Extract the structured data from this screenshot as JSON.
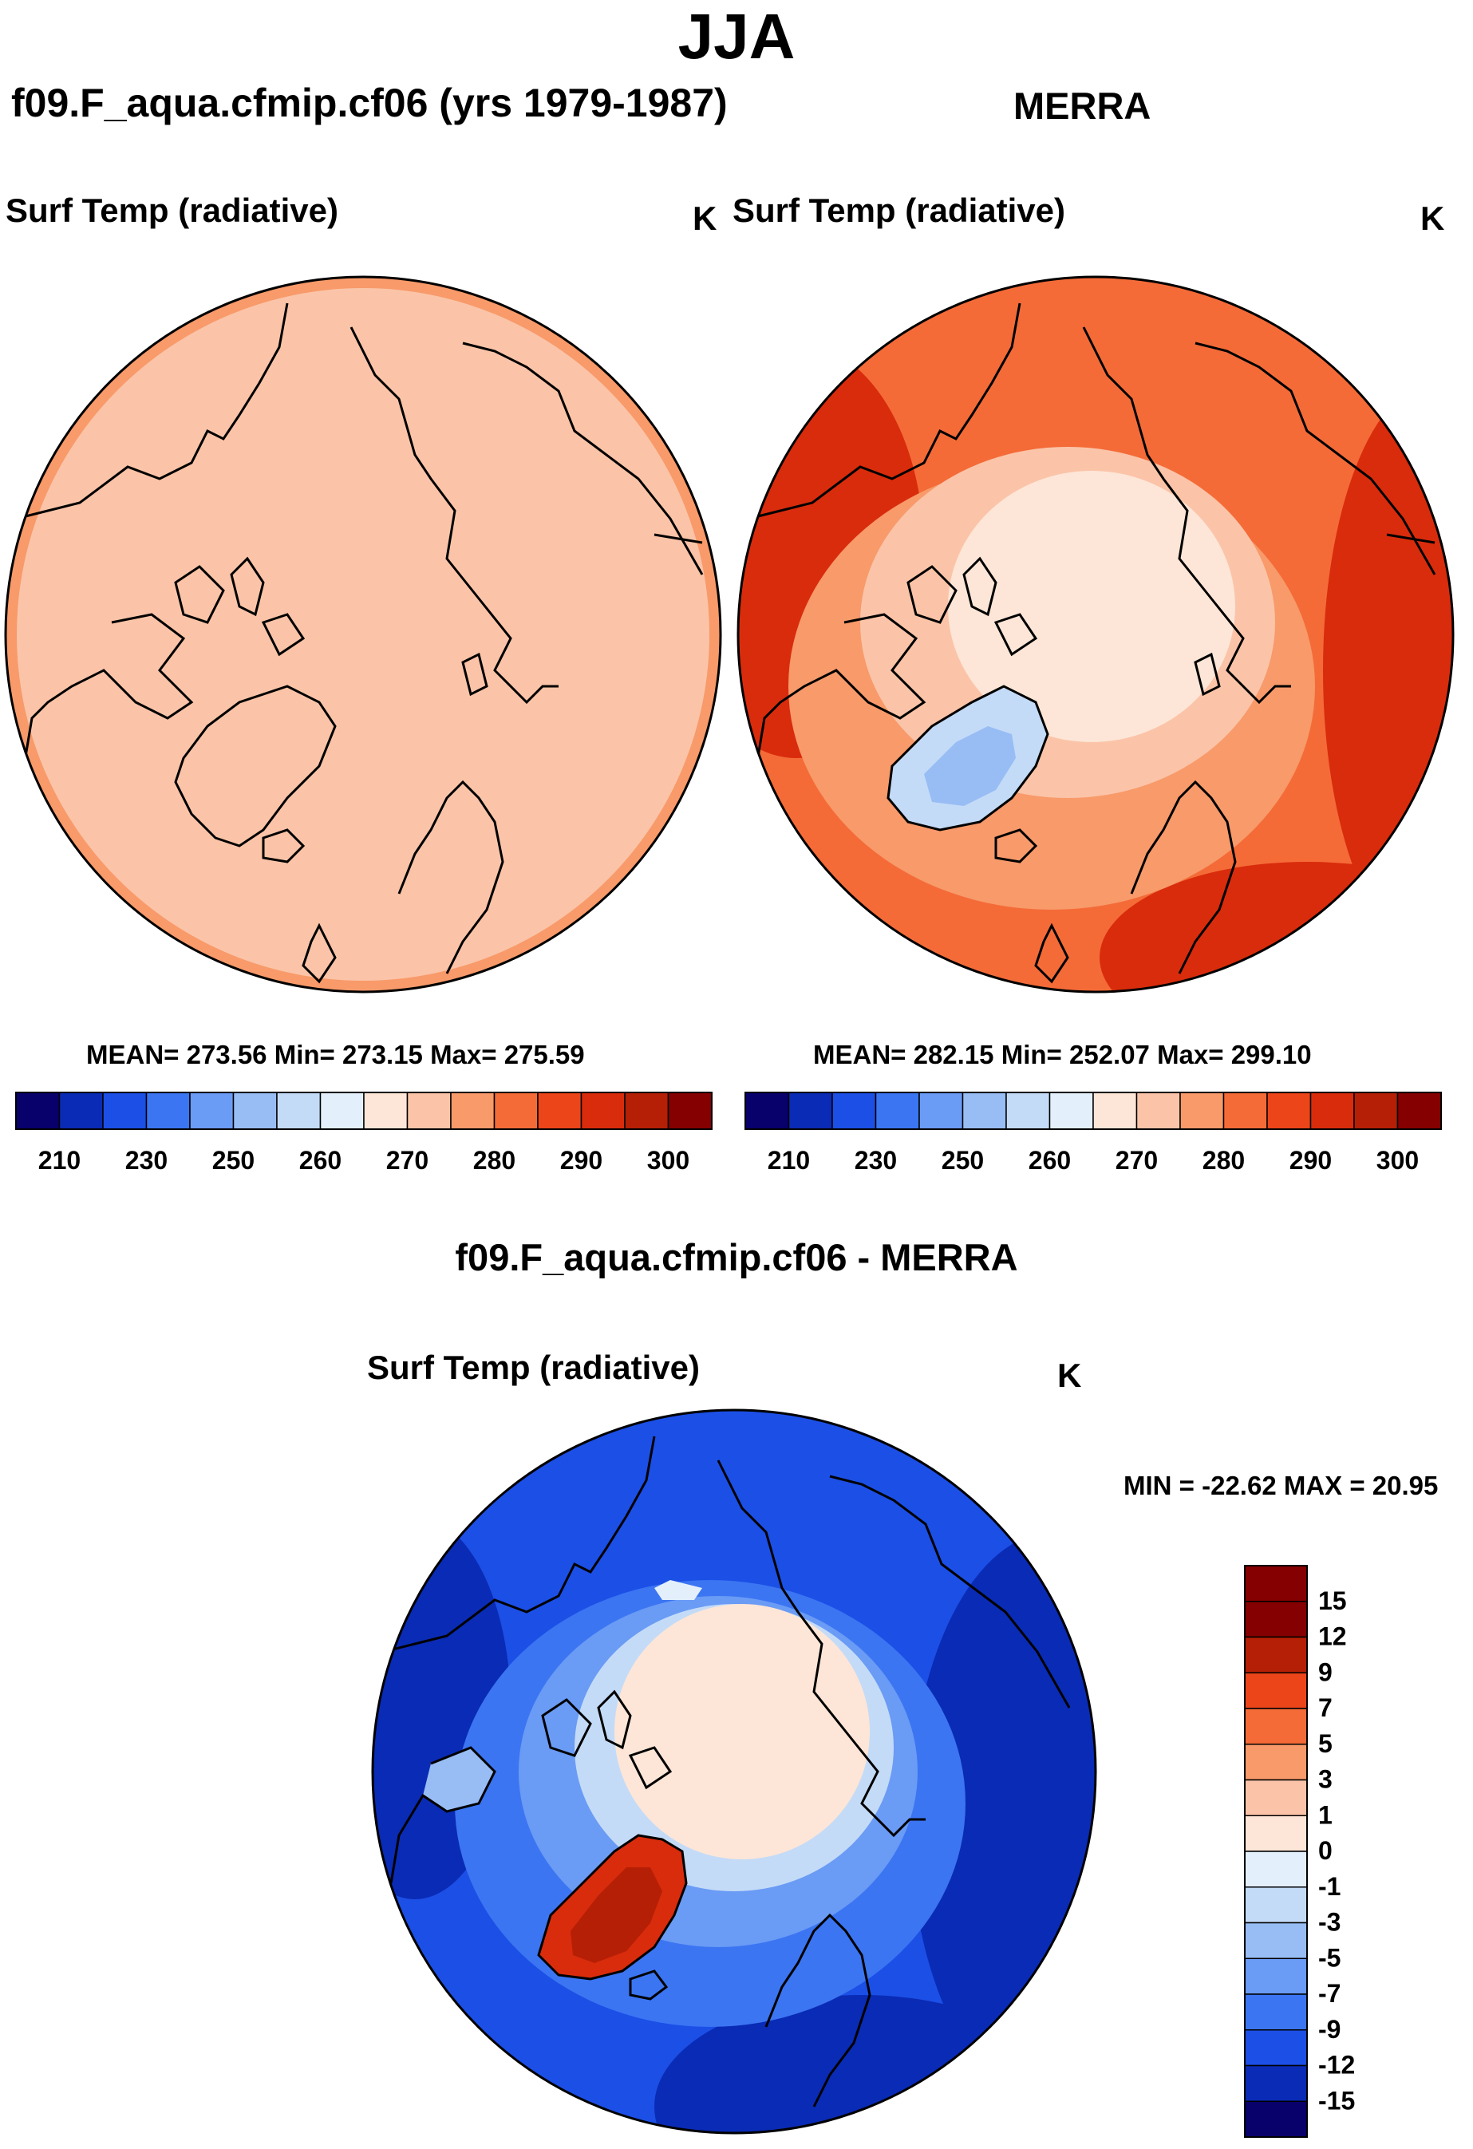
{
  "title": "JJA",
  "panels": {
    "left": {
      "case": "f09.F_aqua.cfmip.cf06 (yrs 1979-1987)",
      "var": "Surf Temp (radiative)",
      "unit": "K",
      "stats": "MEAN= 273.56  Min= 273.15  Max= 275.59"
    },
    "right": {
      "case": "MERRA",
      "var": "Surf Temp (radiative)",
      "unit": "K",
      "stats": "MEAN= 282.15  Min= 252.07  Max= 299.10"
    },
    "diff": {
      "case": "f09.F_aqua.cfmip.cf06 - MERRA",
      "var": "Surf Temp (radiative)",
      "unit": "K",
      "range": "MIN = -22.62 MAX =  20.95"
    }
  },
  "colors": {
    "abs_scale": [
      "#08006b",
      "#0a2bb5",
      "#1c4fe6",
      "#3b75f2",
      "#6a9bf5",
      "#98bdf5",
      "#c4dbf7",
      "#e3f0fb",
      "#fde6d7",
      "#fbc4a8",
      "#f89a6a",
      "#f46b38",
      "#ec4519",
      "#d92c0c",
      "#b51f05",
      "#850000"
    ],
    "diff_scale": [
      "#08006b",
      "#0a2bb5",
      "#1c4fe6",
      "#3b75f2",
      "#6a9bf5",
      "#98bdf5",
      "#c4dbf7",
      "#e3f0fb",
      "#fde6d7",
      "#fbc4a8",
      "#f89a6a",
      "#f46b38",
      "#ec4519",
      "#b51f05",
      "#850000"
    ]
  },
  "chart_data": [
    {
      "type": "heatmap",
      "title": "Surf Temp (radiative)",
      "case": "f09.F_aqua.cfmip.cf06 (yrs 1979-1987)",
      "units": "K",
      "projection": "north polar stereographic",
      "mean": 273.56,
      "min": 273.15,
      "max": 275.59,
      "colorbar_ticks": [
        "210",
        "230",
        "250",
        "270",
        "280",
        "290",
        "300"
      ],
      "colorbar_tick_labels_full": [
        "210",
        "230",
        "250",
        "260",
        "270",
        "280",
        "290",
        "300"
      ]
    },
    {
      "type": "heatmap",
      "title": "Surf Temp (radiative)",
      "case": "MERRA",
      "units": "K",
      "projection": "north polar stereographic",
      "mean": 282.15,
      "min": 252.07,
      "max": 299.1,
      "colorbar_ticks": [
        "210",
        "230",
        "250",
        "260",
        "270",
        "280",
        "290",
        "300"
      ]
    },
    {
      "type": "heatmap",
      "title": "Surf Temp (radiative)",
      "case": "f09.F_aqua.cfmip.cf06 - MERRA",
      "units": "K",
      "projection": "north polar stereographic",
      "min": -22.62,
      "max": 20.95,
      "colorbar_ticks": [
        "15",
        "12",
        "9",
        "7",
        "5",
        "3",
        "1",
        "0",
        "-1",
        "-3",
        "-5",
        "-7",
        "-9",
        "-12",
        "-15"
      ]
    }
  ]
}
